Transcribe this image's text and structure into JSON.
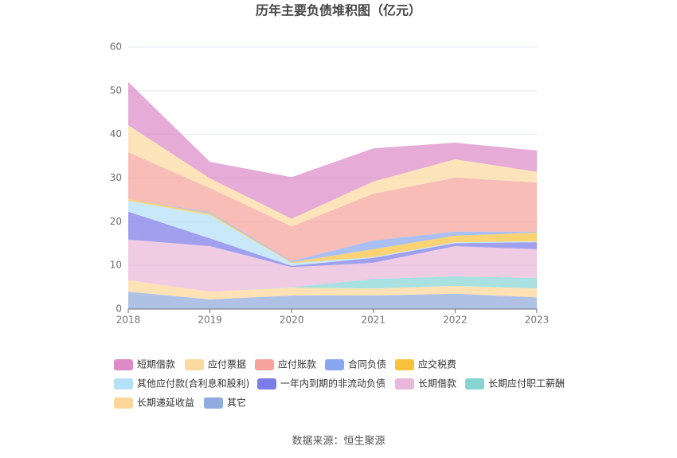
{
  "source": "数据来源：恒生聚源",
  "chart_data": {
    "type": "area",
    "stacked": true,
    "title": "历年主要负债堆积图（亿元）",
    "x": [
      "2018",
      "2019",
      "2020",
      "2021",
      "2022",
      "2023"
    ],
    "ylim": [
      0,
      60
    ],
    "yticks": [
      0,
      10,
      20,
      30,
      40,
      50,
      60
    ],
    "grid": true,
    "legend_position": "bottom",
    "series": [
      {
        "name": "短期借款",
        "color": "#dc8bc6",
        "values": [
          9.9,
          3.8,
          9.5,
          7.6,
          3.8,
          4.9
        ]
      },
      {
        "name": "应付票据",
        "color": "#fcd9a1",
        "values": [
          6.2,
          2.2,
          1.8,
          2.8,
          4.2,
          2.4
        ]
      },
      {
        "name": "应付账款",
        "color": "#f7a39b",
        "values": [
          10.7,
          5.5,
          7.9,
          10.7,
          12.4,
          11.3
        ]
      },
      {
        "name": "合同负债",
        "color": "#89a7f1",
        "values": [
          0.0,
          0.3,
          0.3,
          2.0,
          0.9,
          0.2
        ]
      },
      {
        "name": "应交税费",
        "color": "#f9c23d",
        "values": [
          0.4,
          0.4,
          0.2,
          1.8,
          1.5,
          2.0
        ]
      },
      {
        "name": "其他应付款(合利息和股利)",
        "color": "#b4e1f8",
        "values": [
          2.5,
          5.3,
          0.6,
          0.2,
          0.2,
          0.2
        ]
      },
      {
        "name": "一年内到期的非流动负债",
        "color": "#7c7ce9",
        "values": [
          6.4,
          1.8,
          0.3,
          1.1,
          0.7,
          1.6
        ]
      },
      {
        "name": "长期借款",
        "color": "#e9b7d9",
        "values": [
          9.3,
          10.4,
          4.6,
          3.7,
          6.9,
          6.6
        ]
      },
      {
        "name": "长期应付职工薪酬",
        "color": "#86d5d3",
        "values": [
          0.0,
          0.0,
          0.1,
          2.2,
          2.2,
          2.4
        ]
      },
      {
        "name": "长期递延收益",
        "color": "#fdd79a",
        "values": [
          2.6,
          1.8,
          1.8,
          1.6,
          1.8,
          2.0
        ]
      },
      {
        "name": "其它",
        "color": "#90abdd",
        "values": [
          4.0,
          2.2,
          3.1,
          3.1,
          3.5,
          2.7
        ]
      }
    ]
  }
}
